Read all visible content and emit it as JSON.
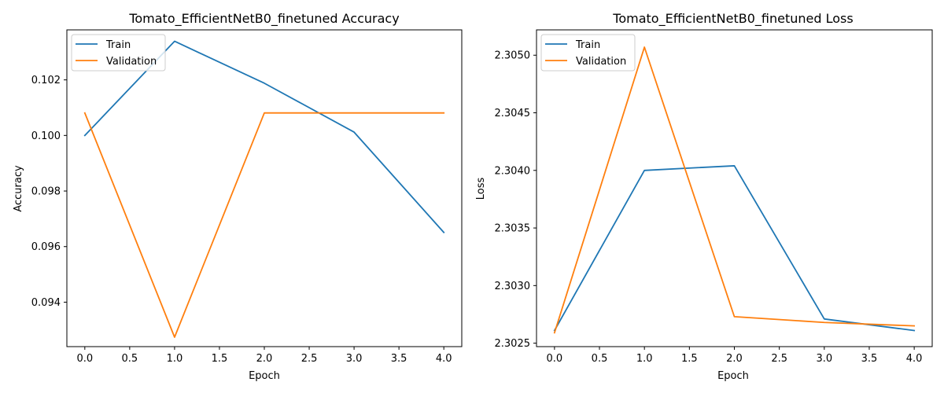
{
  "colors": {
    "train": "#1f77b4",
    "validation": "#ff7f0e"
  },
  "chart_data": [
    {
      "type": "line",
      "title": "Tomato_EfficientNetB0_finetuned Accuracy",
      "xlabel": "Epoch",
      "ylabel": "Accuracy",
      "x": [
        0,
        1,
        2,
        3,
        4
      ],
      "xlim": [
        -0.2,
        4.2
      ],
      "ylim": [
        0.0924,
        0.1038
      ],
      "xticks": [
        0.0,
        0.5,
        1.0,
        1.5,
        2.0,
        2.5,
        3.0,
        3.5,
        4.0
      ],
      "xtick_labels": [
        "0.0",
        "0.5",
        "1.0",
        "1.5",
        "2.0",
        "2.5",
        "3.0",
        "3.5",
        "4.0"
      ],
      "yticks": [
        0.094,
        0.096,
        0.098,
        0.1,
        0.102
      ],
      "ytick_labels": [
        "0.094",
        "0.096",
        "0.098",
        "0.100",
        "0.102"
      ],
      "grid": false,
      "legend_position": "top-left",
      "series": [
        {
          "name": "Train",
          "color": "#1f77b4",
          "values": [
            0.1,
            0.10339,
            0.10188,
            0.10012,
            0.09651
          ]
        },
        {
          "name": "Validation",
          "color": "#ff7f0e",
          "values": [
            0.10081,
            0.09274,
            0.10081,
            0.10081,
            0.10081
          ]
        }
      ]
    },
    {
      "type": "line",
      "title": "Tomato_EfficientNetB0_finetuned Loss",
      "xlabel": "Epoch",
      "ylabel": "Loss",
      "x": [
        0,
        1,
        2,
        3,
        4
      ],
      "xlim": [
        -0.2,
        4.2
      ],
      "ylim": [
        2.30247,
        2.30522
      ],
      "xticks": [
        0.0,
        0.5,
        1.0,
        1.5,
        2.0,
        2.5,
        3.0,
        3.5,
        4.0
      ],
      "xtick_labels": [
        "0.0",
        "0.5",
        "1.0",
        "1.5",
        "2.0",
        "2.5",
        "3.0",
        "3.5",
        "4.0"
      ],
      "yticks": [
        2.3025,
        2.303,
        2.3035,
        2.304,
        2.3045,
        2.305
      ],
      "ytick_labels": [
        "2.3025",
        "2.3030",
        "2.3035",
        "2.3040",
        "2.3045",
        "2.3050"
      ],
      "grid": false,
      "legend_position": "top-left",
      "series": [
        {
          "name": "Train",
          "color": "#1f77b4",
          "values": [
            2.30261,
            2.304,
            2.30404,
            2.30271,
            2.30261
          ]
        },
        {
          "name": "Validation",
          "color": "#ff7f0e",
          "values": [
            2.30259,
            2.30507,
            2.30273,
            2.30268,
            2.30265
          ]
        }
      ]
    }
  ]
}
